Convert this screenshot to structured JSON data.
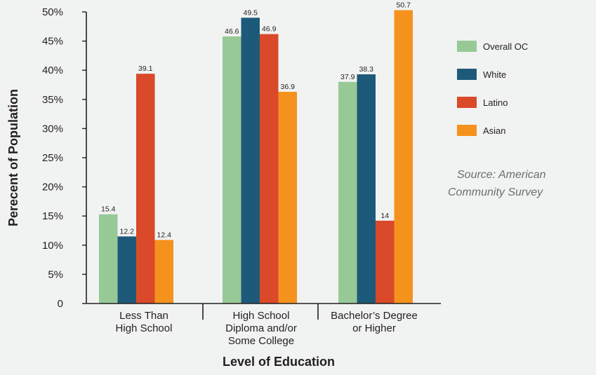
{
  "chart_data": {
    "type": "bar",
    "xlabel": "Level of Education",
    "ylabel": "Perecent of Population",
    "categories": [
      [
        "Less Than",
        "High School"
      ],
      [
        "High School",
        "Diploma and/or",
        "Some College"
      ],
      [
        "Bachelor’s Degree",
        "or Higher"
      ]
    ],
    "yticks": [
      "0",
      "5%",
      "10%",
      "15%",
      "20%",
      "25%",
      "30%",
      "35%",
      "40%",
      "45%",
      "50%"
    ],
    "ylim": [
      0,
      50
    ],
    "grid": false,
    "legend_position": "right",
    "series": [
      {
        "name": "Overall OC",
        "color": "#97c997",
        "values": [
          15.4,
          46.6,
          37.9
        ]
      },
      {
        "name": "White",
        "color": "#1d5a7a",
        "values": [
          12.2,
          49.5,
          38.3
        ]
      },
      {
        "name": "Latino",
        "color": "#d9492a",
        "values": [
          39.1,
          46.9,
          14
        ]
      },
      {
        "name": "Asian",
        "color": "#f5921e",
        "values": [
          12.4,
          36.9,
          50.7
        ]
      }
    ],
    "plotted_values": [
      [
        15.3,
        45.8,
        38.0
      ],
      [
        11.5,
        49.0,
        39.3
      ],
      [
        39.4,
        46.2,
        14.2
      ],
      [
        10.9,
        36.3,
        50.3
      ]
    ],
    "source": [
      "Source: American",
      "Community Survey"
    ]
  }
}
